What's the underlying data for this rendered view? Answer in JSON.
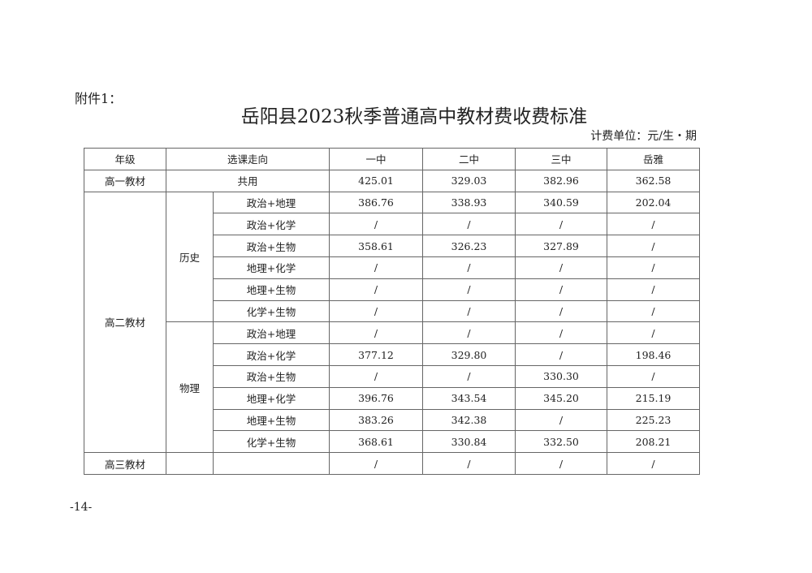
{
  "attachment_label": "附件1：",
  "title": "岳阳县2023秋季普通高中教材费收费标准",
  "unit": "计费单位：元/生・期",
  "table": {
    "headers": {
      "grade": "年级",
      "track": "选课走向",
      "schools": [
        "一中",
        "二中",
        "三中",
        "岳雅"
      ]
    },
    "grade1": {
      "grade": "高一教材",
      "track": "共用",
      "values": [
        "425.01",
        "329.03",
        "382.96",
        "362.58"
      ]
    },
    "grade2": {
      "grade": "高二教材",
      "groups": [
        {
          "name": "历史",
          "rows": [
            {
              "combo": "政治+地理",
              "values": [
                "386.76",
                "338.93",
                "340.59",
                "202.04"
              ]
            },
            {
              "combo": "政治+化学",
              "values": [
                "/",
                "/",
                "/",
                "/"
              ]
            },
            {
              "combo": "政治+生物",
              "values": [
                "358.61",
                "326.23",
                "327.89",
                "/"
              ]
            },
            {
              "combo": "地理+化学",
              "values": [
                "/",
                "/",
                "/",
                "/"
              ]
            },
            {
              "combo": "地理+生物",
              "values": [
                "/",
                "/",
                "/",
                "/"
              ]
            },
            {
              "combo": "化学+生物",
              "values": [
                "/",
                "/",
                "/",
                "/"
              ]
            }
          ]
        },
        {
          "name": "物理",
          "rows": [
            {
              "combo": "政治+地理",
              "values": [
                "/",
                "/",
                "/",
                "/"
              ]
            },
            {
              "combo": "政治+化学",
              "values": [
                "377.12",
                "329.80",
                "/",
                "198.46"
              ]
            },
            {
              "combo": "政治+生物",
              "values": [
                "/",
                "/",
                "330.30",
                "/"
              ]
            },
            {
              "combo": "地理+化学",
              "values": [
                "396.76",
                "343.54",
                "345.20",
                "215.19"
              ]
            },
            {
              "combo": "地理+生物",
              "values": [
                "383.26",
                "342.38",
                "/",
                "225.23"
              ]
            },
            {
              "combo": "化学+生物",
              "values": [
                "368.61",
                "330.84",
                "332.50",
                "208.21"
              ]
            }
          ]
        }
      ]
    },
    "grade3": {
      "grade": "高三教材",
      "values": [
        "/",
        "/",
        "/",
        "/"
      ]
    }
  },
  "page_number": "-14-"
}
